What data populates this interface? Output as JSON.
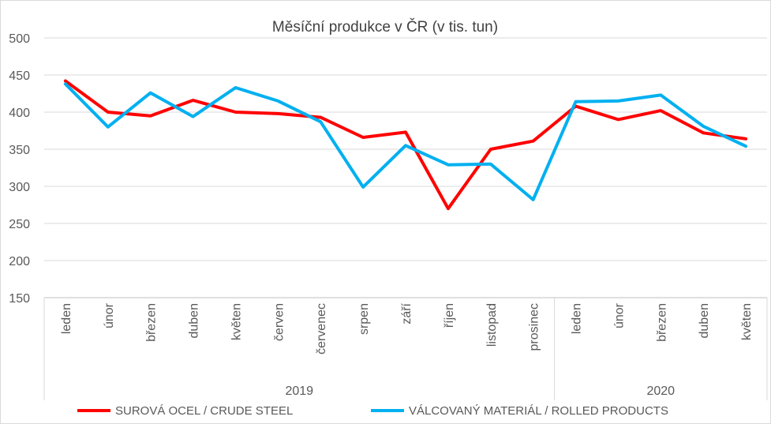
{
  "chart_data": {
    "type": "line",
    "title": "Měsíční produkce v ČR (v tis. tun)",
    "ylim": [
      150,
      500
    ],
    "yticks": [
      150,
      200,
      250,
      300,
      350,
      400,
      450,
      500
    ],
    "grid": true,
    "categories": [
      "leden",
      "únor",
      "březen",
      "duben",
      "květen",
      "červen",
      "červenec",
      "srpen",
      "září",
      "říjen",
      "listopad",
      "prosinec",
      "leden",
      "únor",
      "březen",
      "duben",
      "květen"
    ],
    "groups": [
      {
        "label": "2019",
        "count": 12
      },
      {
        "label": "2020",
        "count": 5
      }
    ],
    "legend_position": "bottom",
    "series": [
      {
        "name": "SUROVÁ OCEL / CRUDE STEEL",
        "color": "#ff0000",
        "values": [
          442,
          400,
          395,
          416,
          400,
          398,
          393,
          366,
          373,
          270,
          350,
          361,
          408,
          390,
          402,
          372,
          364
        ]
      },
      {
        "name": "VÁLCOVANÝ MATERIÁL / ROLLED PRODUCTS",
        "color": "#00b0f0",
        "values": [
          438,
          380,
          426,
          394,
          433,
          415,
          387,
          299,
          355,
          329,
          330,
          282,
          414,
          415,
          423,
          381,
          354
        ]
      }
    ]
  }
}
